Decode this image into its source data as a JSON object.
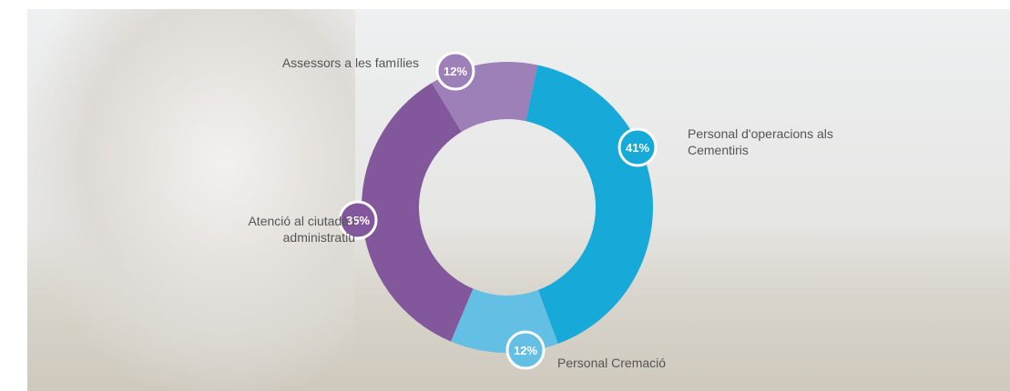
{
  "chart_data": {
    "type": "donut",
    "categories": [
      "Personal d'operacions als Cementiris",
      "Personal Cremació",
      "Atenció al ciutadà i administratiu",
      "Assessors a les famílies"
    ],
    "values": [
      41,
      12,
      35,
      12
    ],
    "value_labels": [
      "41%",
      "12%",
      "35%",
      "12%"
    ],
    "colors": [
      "#17aad9",
      "#63bfe4",
      "#83579b",
      "#9d80b8"
    ]
  }
}
